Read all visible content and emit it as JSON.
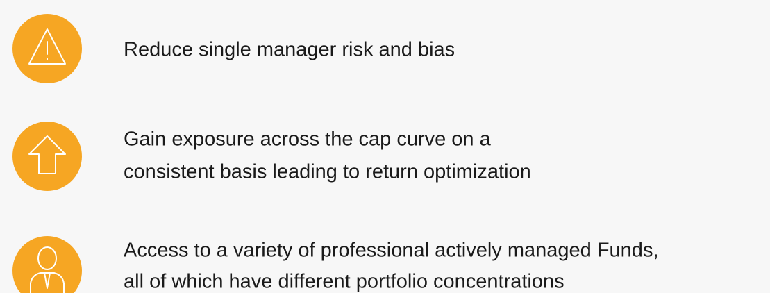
{
  "items": [
    {
      "lines": [
        "Reduce single manager risk and bias"
      ]
    },
    {
      "lines": [
        "Gain exposure across the cap curve on a",
        "consistent basis leading to return optimization"
      ]
    },
    {
      "lines": [
        "Access to a variety of professional actively managed Funds,",
        "all of which have different portfolio concentrations"
      ]
    }
  ]
}
